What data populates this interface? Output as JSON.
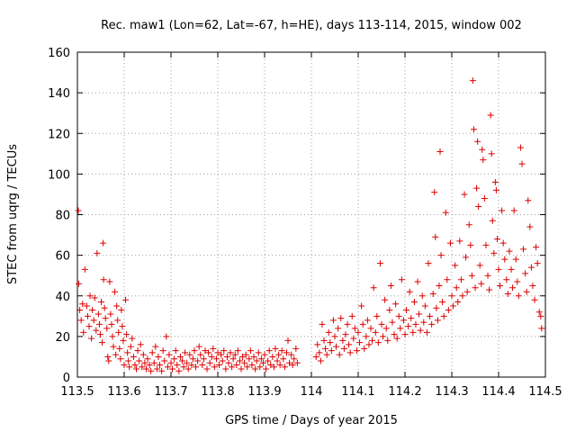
{
  "chart_data": {
    "type": "scatter",
    "title": "Rec. maw1 (Lon=62, Lat=-67, h=HE), days 113-114, 2015, window 002",
    "xlabel": "GPS time / Days of year 2015",
    "ylabel": "STEC from uqrg / TECUs",
    "xlim": [
      113.5,
      114.5
    ],
    "ylim": [
      0,
      160
    ],
    "x_ticks": [
      113.5,
      113.6,
      113.7,
      113.8,
      113.9,
      114.0,
      114.1,
      114.2,
      114.3,
      114.4,
      114.5
    ],
    "x_tick_labels": [
      "113.5",
      "113.6",
      "113.7",
      "113.8",
      "113.9",
      "114",
      "114.1",
      "114.2",
      "114.3",
      "114.4",
      "114.5"
    ],
    "y_ticks": [
      0,
      20,
      40,
      60,
      80,
      100,
      120,
      140,
      160
    ],
    "y_tick_labels": [
      "0",
      "20",
      "40",
      "60",
      "80",
      "100",
      "120",
      "140",
      "160"
    ],
    "grid": true,
    "marker": "+",
    "color": "#dd0000",
    "series": [
      {
        "points": [
          [
            113.502,
            82
          ],
          [
            113.503,
            46
          ],
          [
            113.505,
            33
          ],
          [
            113.508,
            28
          ],
          [
            113.511,
            36
          ],
          [
            113.513,
            22
          ],
          [
            113.516,
            53
          ],
          [
            113.52,
            35
          ],
          [
            113.522,
            30
          ],
          [
            113.525,
            25
          ],
          [
            113.527,
            40
          ],
          [
            113.53,
            19
          ],
          [
            113.532,
            33
          ],
          [
            113.535,
            28
          ],
          [
            113.537,
            39
          ],
          [
            113.54,
            23
          ],
          [
            113.542,
            61
          ],
          [
            113.545,
            31
          ],
          [
            113.547,
            26
          ],
          [
            113.549,
            21
          ],
          [
            113.551,
            37
          ],
          [
            113.553,
            17
          ],
          [
            113.555,
            66
          ],
          [
            113.556,
            48
          ],
          [
            113.558,
            34
          ],
          [
            113.56,
            29
          ],
          [
            113.563,
            24
          ],
          [
            113.565,
            10
          ],
          [
            113.567,
            8
          ],
          [
            113.569,
            47
          ],
          [
            113.571,
            31
          ],
          [
            113.573,
            26
          ],
          [
            113.575,
            20
          ],
          [
            113.577,
            15
          ],
          [
            113.58,
            42
          ],
          [
            113.582,
            11
          ],
          [
            113.584,
            35
          ],
          [
            113.586,
            28
          ],
          [
            113.588,
            22
          ],
          [
            113.59,
            14
          ],
          [
            113.592,
            9
          ],
          [
            113.594,
            33
          ],
          [
            113.596,
            25
          ],
          [
            113.598,
            18
          ],
          [
            113.6,
            6
          ],
          [
            113.603,
            38
          ],
          [
            113.605,
            21
          ],
          [
            113.607,
            12
          ],
          [
            113.609,
            8
          ],
          [
            113.611,
            5
          ],
          [
            113.614,
            15
          ],
          [
            113.617,
            19
          ],
          [
            113.62,
            10
          ],
          [
            113.623,
            6
          ],
          [
            113.626,
            4
          ],
          [
            113.629,
            13
          ],
          [
            113.632,
            8
          ],
          [
            113.635,
            16
          ],
          [
            113.638,
            5
          ],
          [
            113.641,
            11
          ],
          [
            113.644,
            7
          ],
          [
            113.647,
            4
          ],
          [
            113.65,
            9
          ],
          [
            113.654,
            6
          ],
          [
            113.657,
            3
          ],
          [
            113.66,
            12
          ],
          [
            113.664,
            7
          ],
          [
            113.667,
            15
          ],
          [
            113.67,
            4
          ],
          [
            113.673,
            10
          ],
          [
            113.676,
            6
          ],
          [
            113.68,
            3
          ],
          [
            113.683,
            13
          ],
          [
            113.686,
            8
          ],
          [
            113.69,
            20
          ],
          [
            113.693,
            5
          ],
          [
            113.696,
            11
          ],
          [
            113.7,
            7
          ],
          [
            113.703,
            4
          ],
          [
            113.707,
            9
          ],
          [
            113.71,
            13
          ],
          [
            113.713,
            6
          ],
          [
            113.717,
            3
          ],
          [
            113.72,
            10
          ],
          [
            113.724,
            8
          ],
          [
            113.727,
            5
          ],
          [
            113.73,
            12
          ],
          [
            113.734,
            7
          ],
          [
            113.737,
            4
          ],
          [
            113.74,
            11
          ],
          [
            113.744,
            6
          ],
          [
            113.747,
            9
          ],
          [
            113.75,
            13
          ],
          [
            113.753,
            5
          ],
          [
            113.757,
            8
          ],
          [
            113.76,
            15
          ],
          [
            113.763,
            11
          ],
          [
            113.767,
            6
          ],
          [
            113.77,
            9
          ],
          [
            113.773,
            13
          ],
          [
            113.777,
            4
          ],
          [
            113.78,
            12
          ],
          [
            113.783,
            7
          ],
          [
            113.787,
            10
          ],
          [
            113.79,
            14
          ],
          [
            113.793,
            5
          ],
          [
            113.797,
            9
          ],
          [
            113.8,
            12
          ],
          [
            113.803,
            6
          ],
          [
            113.807,
            11
          ],
          [
            113.81,
            8
          ],
          [
            113.813,
            13
          ],
          [
            113.817,
            4
          ],
          [
            113.82,
            10
          ],
          [
            113.823,
            7
          ],
          [
            113.827,
            12
          ],
          [
            113.83,
            5
          ],
          [
            113.833,
            9
          ],
          [
            113.837,
            11
          ],
          [
            113.84,
            6
          ],
          [
            113.843,
            13
          ],
          [
            113.847,
            8
          ],
          [
            113.85,
            4
          ],
          [
            113.853,
            10
          ],
          [
            113.857,
            7
          ],
          [
            113.86,
            11
          ],
          [
            113.863,
            5
          ],
          [
            113.867,
            9
          ],
          [
            113.87,
            13
          ],
          [
            113.873,
            6
          ],
          [
            113.877,
            10
          ],
          [
            113.88,
            4
          ],
          [
            113.883,
            8
          ],
          [
            113.887,
            12
          ],
          [
            113.89,
            5
          ],
          [
            113.893,
            9
          ],
          [
            113.897,
            7
          ],
          [
            113.9,
            11
          ],
          [
            113.903,
            4
          ],
          [
            113.907,
            8
          ],
          [
            113.91,
            13
          ],
          [
            113.913,
            6
          ],
          [
            113.917,
            10
          ],
          [
            113.92,
            5
          ],
          [
            113.923,
            14
          ],
          [
            113.927,
            8
          ],
          [
            113.93,
            11
          ],
          [
            113.933,
            6
          ],
          [
            113.937,
            13
          ],
          [
            113.94,
            9
          ],
          [
            113.943,
            5
          ],
          [
            113.947,
            12
          ],
          [
            113.95,
            18
          ],
          [
            113.953,
            7
          ],
          [
            113.957,
            11
          ],
          [
            113.96,
            6
          ],
          [
            113.963,
            9
          ],
          [
            113.967,
            14
          ],
          [
            113.97,
            7
          ],
          [
            114.01,
            10
          ],
          [
            114.013,
            16
          ],
          [
            114.017,
            12
          ],
          [
            114.02,
            8
          ],
          [
            114.023,
            26
          ],
          [
            114.027,
            18
          ],
          [
            114.03,
            14
          ],
          [
            114.033,
            11
          ],
          [
            114.037,
            22
          ],
          [
            114.04,
            17
          ],
          [
            114.043,
            13
          ],
          [
            114.047,
            28
          ],
          [
            114.05,
            20
          ],
          [
            114.053,
            15
          ],
          [
            114.057,
            24
          ],
          [
            114.06,
            11
          ],
          [
            114.063,
            29
          ],
          [
            114.067,
            18
          ],
          [
            114.07,
            14
          ],
          [
            114.073,
            21
          ],
          [
            114.077,
            26
          ],
          [
            114.08,
            16
          ],
          [
            114.083,
            12
          ],
          [
            114.087,
            30
          ],
          [
            114.09,
            19
          ],
          [
            114.093,
            24
          ],
          [
            114.097,
            13
          ],
          [
            114.1,
            22
          ],
          [
            114.103,
            17
          ],
          [
            114.107,
            35
          ],
          [
            114.11,
            26
          ],
          [
            114.113,
            14
          ],
          [
            114.117,
            20
          ],
          [
            114.12,
            28
          ],
          [
            114.123,
            16
          ],
          [
            114.127,
            24
          ],
          [
            114.13,
            18
          ],
          [
            114.133,
            44
          ],
          [
            114.137,
            22
          ],
          [
            114.14,
            30
          ],
          [
            114.143,
            17
          ],
          [
            114.147,
            56
          ],
          [
            114.15,
            26
          ],
          [
            114.153,
            20
          ],
          [
            114.157,
            38
          ],
          [
            114.16,
            24
          ],
          [
            114.163,
            18
          ],
          [
            114.167,
            33
          ],
          [
            114.17,
            45
          ],
          [
            114.173,
            27
          ],
          [
            114.177,
            21
          ],
          [
            114.18,
            36
          ],
          [
            114.183,
            19
          ],
          [
            114.187,
            30
          ],
          [
            114.19,
            24
          ],
          [
            114.193,
            48
          ],
          [
            114.197,
            28
          ],
          [
            114.2,
            21
          ],
          [
            114.203,
            33
          ],
          [
            114.207,
            25
          ],
          [
            114.21,
            42
          ],
          [
            114.213,
            29
          ],
          [
            114.217,
            22
          ],
          [
            114.22,
            37
          ],
          [
            114.223,
            26
          ],
          [
            114.227,
            47
          ],
          [
            114.23,
            31
          ],
          [
            114.233,
            23
          ],
          [
            114.237,
            40
          ],
          [
            114.24,
            27
          ],
          [
            114.243,
            35
          ],
          [
            114.247,
            22
          ],
          [
            114.25,
            56
          ],
          [
            114.253,
            30
          ],
          [
            114.257,
            26
          ],
          [
            114.26,
            41
          ],
          [
            114.263,
            91
          ],
          [
            114.265,
            69
          ],
          [
            114.267,
            34
          ],
          [
            114.27,
            28
          ],
          [
            114.273,
            45
          ],
          [
            114.275,
            111
          ],
          [
            114.277,
            60
          ],
          [
            114.28,
            37
          ],
          [
            114.283,
            30
          ],
          [
            114.287,
            81
          ],
          [
            114.29,
            48
          ],
          [
            114.293,
            33
          ],
          [
            114.297,
            66
          ],
          [
            114.3,
            40
          ],
          [
            114.303,
            35
          ],
          [
            114.307,
            55
          ],
          [
            114.31,
            44
          ],
          [
            114.313,
            37
          ],
          [
            114.317,
            67
          ],
          [
            114.32,
            48
          ],
          [
            114.323,
            40
          ],
          [
            114.327,
            90
          ],
          [
            114.33,
            59
          ],
          [
            114.333,
            42
          ],
          [
            114.337,
            75
          ],
          [
            114.34,
            65
          ],
          [
            114.343,
            50
          ],
          [
            114.345,
            146
          ],
          [
            114.347,
            122
          ],
          [
            114.35,
            44
          ],
          [
            114.353,
            93
          ],
          [
            114.355,
            116
          ],
          [
            114.357,
            84
          ],
          [
            114.36,
            55
          ],
          [
            114.363,
            46
          ],
          [
            114.365,
            112
          ],
          [
            114.367,
            107
          ],
          [
            114.37,
            88
          ],
          [
            114.373,
            65
          ],
          [
            114.377,
            50
          ],
          [
            114.38,
            43
          ],
          [
            114.383,
            129
          ],
          [
            114.385,
            110
          ],
          [
            114.387,
            77
          ],
          [
            114.39,
            61
          ],
          [
            114.393,
            96
          ],
          [
            114.395,
            92
          ],
          [
            114.397,
            68
          ],
          [
            114.4,
            53
          ],
          [
            114.403,
            45
          ],
          [
            114.407,
            82
          ],
          [
            114.41,
            66
          ],
          [
            114.413,
            58
          ],
          [
            114.417,
            48
          ],
          [
            114.42,
            41
          ],
          [
            114.423,
            62
          ],
          [
            114.427,
            53
          ],
          [
            114.43,
            44
          ],
          [
            114.433,
            82
          ],
          [
            114.437,
            58
          ],
          [
            114.44,
            47
          ],
          [
            114.443,
            40
          ],
          [
            114.447,
            113
          ],
          [
            114.45,
            105
          ],
          [
            114.453,
            63
          ],
          [
            114.457,
            51
          ],
          [
            114.46,
            42
          ],
          [
            114.463,
            87
          ],
          [
            114.467,
            74
          ],
          [
            114.47,
            54
          ],
          [
            114.473,
            45
          ],
          [
            114.477,
            38
          ],
          [
            114.48,
            64
          ],
          [
            114.483,
            56
          ],
          [
            114.487,
            32
          ],
          [
            114.49,
            30
          ],
          [
            114.492,
            24
          ]
        ]
      }
    ]
  }
}
